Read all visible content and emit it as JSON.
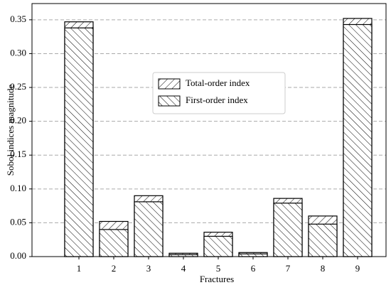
{
  "chart_data": {
    "type": "bar",
    "x_label": "Fractures",
    "y_label": "Sobol indices magnitude",
    "categories": [
      "1",
      "2",
      "3",
      "4",
      "5",
      "6",
      "7",
      "8",
      "9"
    ],
    "series": [
      {
        "name": "Total-order index",
        "color": "#000000",
        "hatch": "/",
        "values": [
          0.347,
          0.052,
          0.09,
          0.005,
          0.036,
          0.006,
          0.086,
          0.06,
          0.352
        ]
      },
      {
        "name": "First-order index",
        "color": "#000000",
        "hatch": "\\",
        "values": [
          0.338,
          0.04,
          0.081,
          0.003,
          0.03,
          0.004,
          0.079,
          0.048,
          0.343
        ]
      }
    ],
    "ylim": [
      0,
      0.374
    ],
    "yticks": [
      {
        "value": 0,
        "label": "0.00"
      },
      0.05,
      {
        "value": 0.1,
        "label": "0.10"
      },
      0.15,
      {
        "value": 0.2,
        "label": "0.20"
      },
      0.25,
      {
        "value": 0.3,
        "label": "0.30"
      },
      0.35
    ],
    "grid": true,
    "legend": "center"
  }
}
